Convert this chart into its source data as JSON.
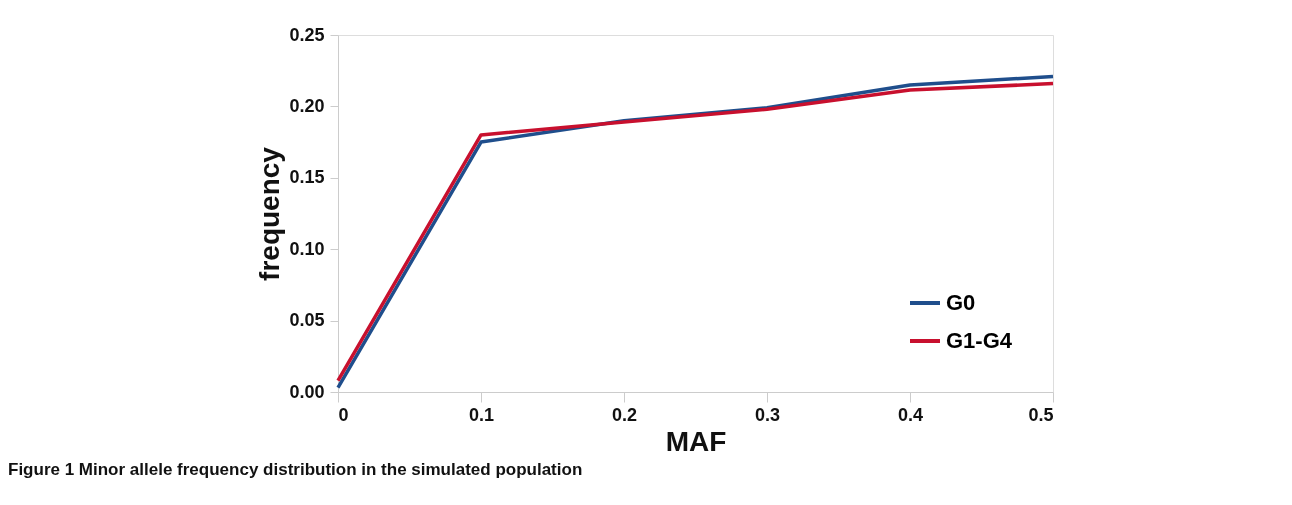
{
  "chart_data": {
    "type": "line",
    "xlabel": "MAF",
    "ylabel": "frequency",
    "x": [
      0,
      0.1,
      0.2,
      0.3,
      0.4,
      0.5
    ],
    "series": [
      {
        "name": "G0",
        "color": "#1f4e8c",
        "values": [
          0.003,
          0.175,
          0.19,
          0.199,
          0.215,
          0.221
        ]
      },
      {
        "name": "G1-G4",
        "color": "#c8102e",
        "values": [
          0.008,
          0.18,
          0.189,
          0.198,
          0.2115,
          0.216
        ]
      }
    ],
    "xlim": [
      0,
      0.5
    ],
    "xticks": [
      {
        "value": 0,
        "label": "0"
      },
      0.1,
      0.2,
      0.3,
      0.4,
      0.5
    ],
    "ylim": [
      0,
      0.25
    ],
    "yticks": [
      {
        "value": 0,
        "label": "0.00"
      },
      {
        "value": 0.05,
        "label": "0.05"
      },
      {
        "value": 0.1,
        "label": "0.10"
      },
      {
        "value": 0.15,
        "label": "0.15"
      },
      {
        "value": 0.2,
        "label": "0.20"
      },
      {
        "value": 0.25,
        "label": "0.25"
      }
    ],
    "grid": false,
    "legend": "bottom right",
    "marker": "none",
    "line_style": "solid",
    "annotations": [
      "Figure 1 Minor allele frequency distribution in the simulated population"
    ]
  }
}
